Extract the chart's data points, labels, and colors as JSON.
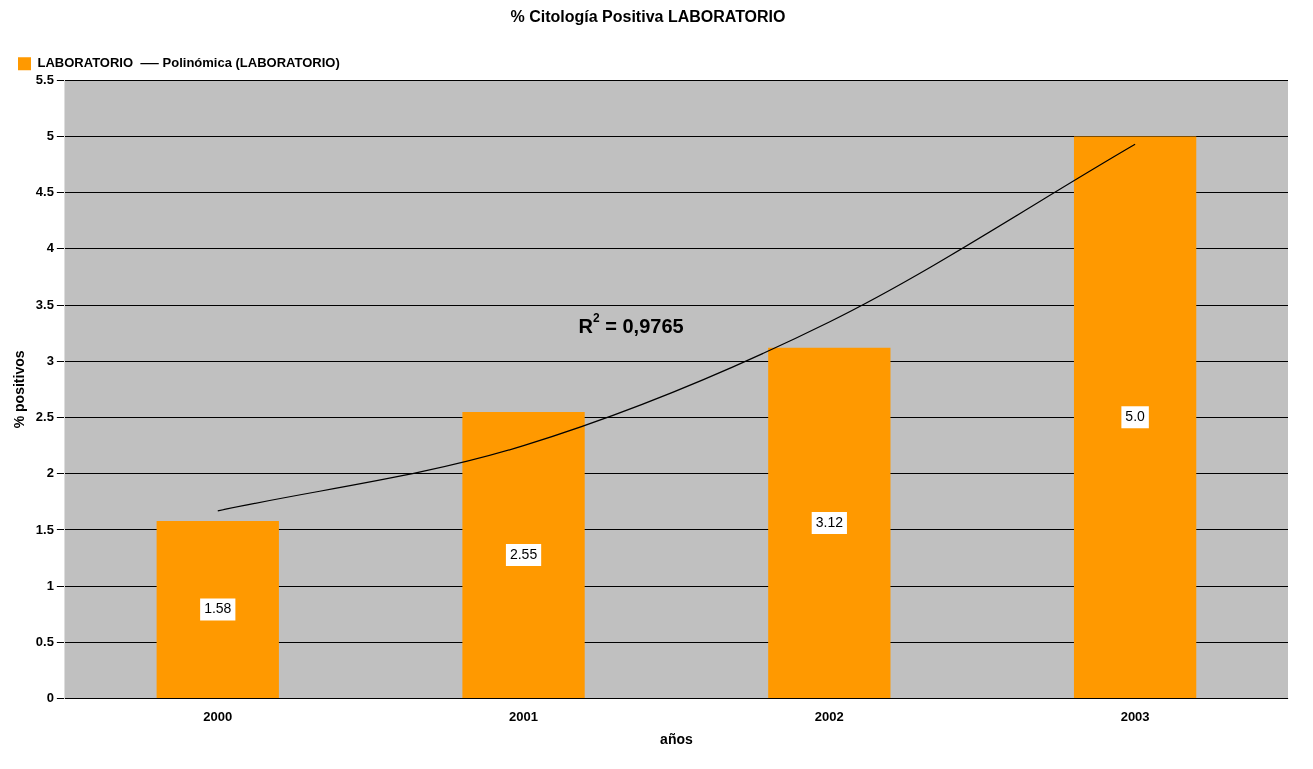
{
  "chart_data": {
    "type": "bar",
    "title": "% Citología Positiva LABORATORIO",
    "xlabel": "años",
    "ylabel": "% positivos",
    "categories": [
      "2000",
      "2001",
      "2002",
      "2003"
    ],
    "series": [
      {
        "name": "LABORATORIO",
        "color": "#ff9900",
        "values": [
          1.58,
          2.55,
          3.12,
          5.0
        ],
        "value_labels": [
          "1.58",
          "2.55",
          "3.12",
          "5.0"
        ]
      },
      {
        "name": "Polinómica (LABORATORIO)",
        "type": "line",
        "color": "#000000",
        "values": [
          1.67,
          2.25,
          3.35,
          4.93
        ]
      }
    ],
    "ylim": [
      0,
      5.5
    ],
    "yticks": [
      0,
      0.5,
      1,
      1.5,
      2,
      2.5,
      3,
      3.5,
      4,
      4.5,
      5,
      5.5
    ],
    "grid": "y",
    "legend": "top left",
    "marker": "none",
    "annotations": [
      "R$^{2}$ = 0,9765"
    ]
  }
}
